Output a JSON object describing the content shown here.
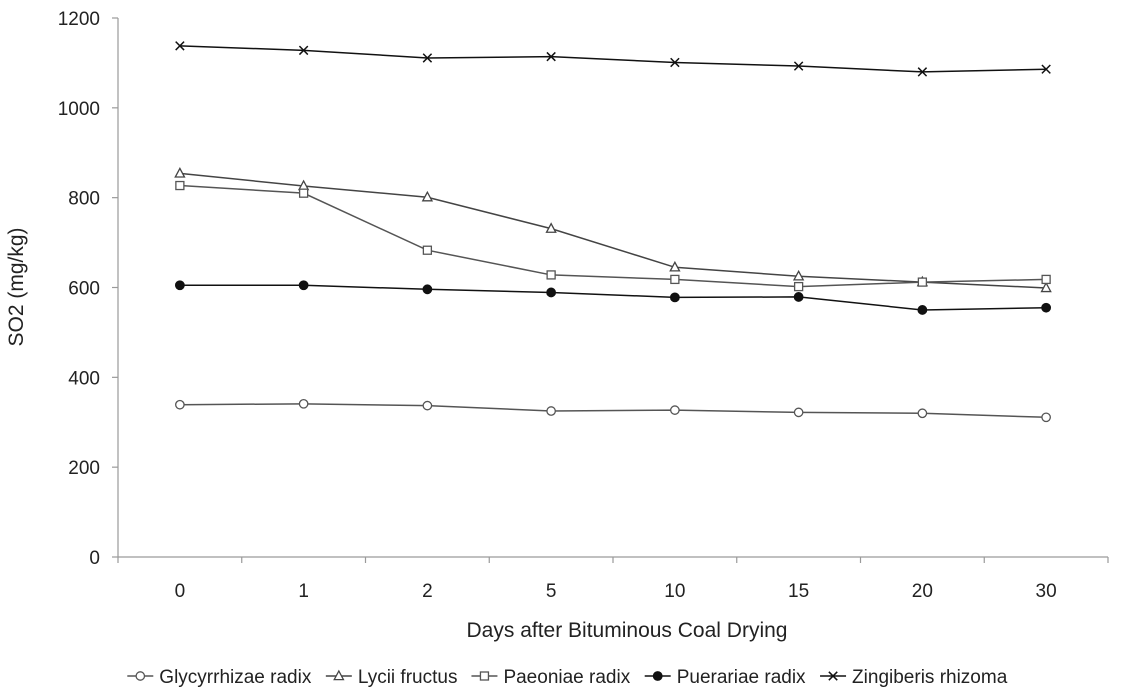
{
  "chart_data": {
    "type": "line",
    "title": "",
    "xlabel": "Days after Bituminous Coal Drying",
    "ylabel": "SO2 (mg/kg)",
    "categories": [
      "0",
      "1",
      "2",
      "5",
      "10",
      "15",
      "20",
      "30"
    ],
    "ylim": [
      0,
      1200
    ],
    "yticks": [
      0,
      200,
      400,
      600,
      800,
      1000,
      1200
    ],
    "grid": false,
    "legend": "bottom",
    "series": [
      {
        "name": "Glycyrrhizae radix",
        "marker": "open-circle",
        "color": "#555555",
        "values": [
          339,
          341,
          337,
          325,
          327,
          322,
          320,
          311
        ]
      },
      {
        "name": "Lycii fructus",
        "marker": "open-triangle",
        "color": "#444444",
        "values": [
          854,
          826,
          801,
          731,
          645,
          625,
          612,
          599
        ]
      },
      {
        "name": "Paeoniae radix",
        "marker": "open-square",
        "color": "#555555",
        "values": [
          827,
          810,
          683,
          628,
          618,
          602,
          612,
          618
        ]
      },
      {
        "name": "Puerariae radix",
        "marker": "filled-circle",
        "color": "#111111",
        "values": [
          605,
          605,
          596,
          589,
          578,
          579,
          550,
          555
        ]
      },
      {
        "name": "Zingiberis rhizoma",
        "marker": "x",
        "color": "#111111",
        "values": [
          1138,
          1128,
          1111,
          1114,
          1101,
          1093,
          1080,
          1086
        ]
      }
    ]
  }
}
